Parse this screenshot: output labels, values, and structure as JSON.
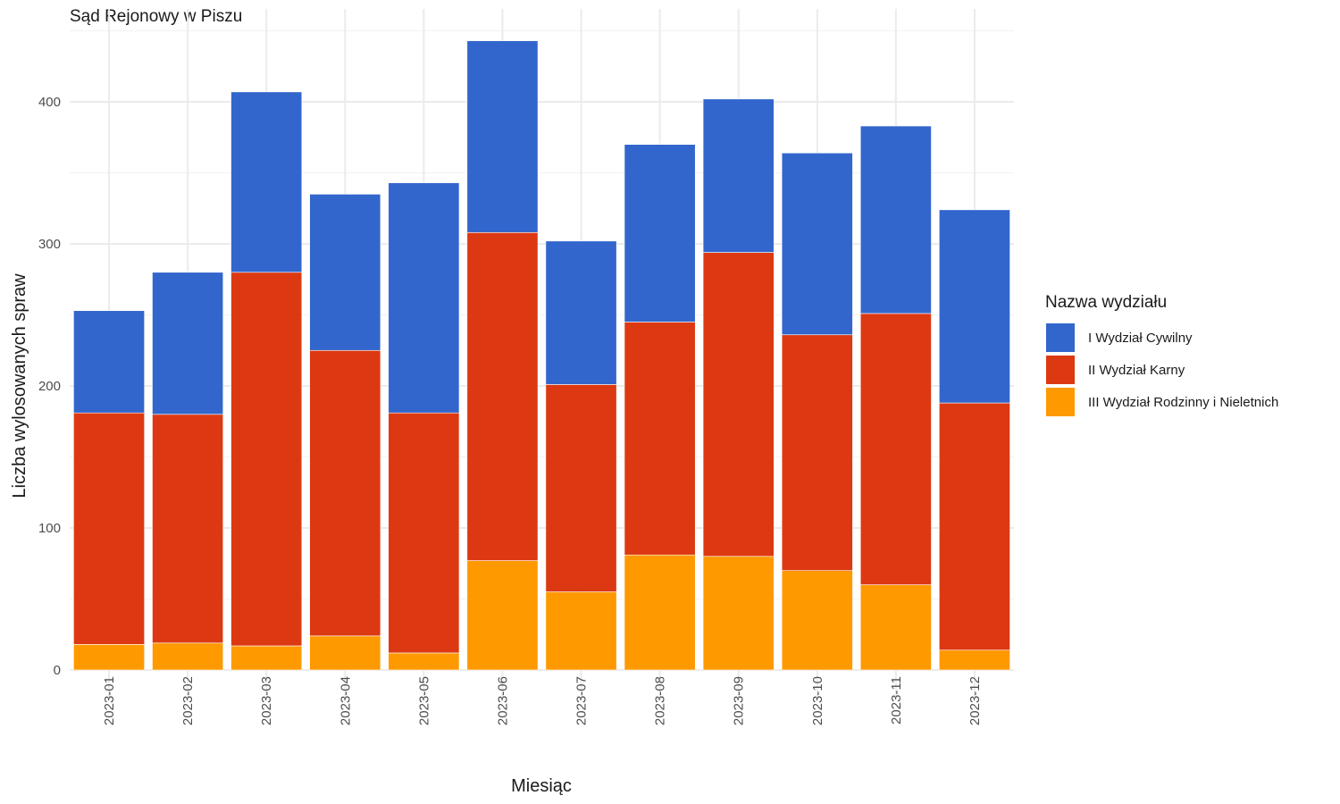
{
  "chart_data": {
    "type": "bar",
    "stacked": true,
    "title": "Sąd Rejonowy w Piszu",
    "xlabel": "Miesiąc",
    "ylabel": "Liczba wylosowanych spraw",
    "ylim": [
      0,
      450
    ],
    "yticks": [
      0,
      100,
      200,
      300,
      400
    ],
    "grid": true,
    "categories": [
      "2023-01",
      "2023-02",
      "2023-03",
      "2023-04",
      "2023-05",
      "2023-06",
      "2023-07",
      "2023-08",
      "2023-09",
      "2023-10",
      "2023-11",
      "2023-12"
    ],
    "legend_title": "Nazwa wydziału",
    "legend_position": "right",
    "series": [
      {
        "name": "III Wydział Rodzinny i Nieletnich",
        "color": "#ff9900",
        "values": [
          18,
          19,
          17,
          24,
          12,
          77,
          55,
          81,
          80,
          70,
          60,
          14
        ]
      },
      {
        "name": "II Wydział Karny",
        "color": "#dc3912",
        "values": [
          163,
          161,
          263,
          201,
          169,
          231,
          146,
          164,
          214,
          166,
          191,
          174
        ]
      },
      {
        "name": "I Wydział Cywilny",
        "color": "#3366cc",
        "values": [
          72,
          100,
          127,
          110,
          162,
          135,
          101,
          125,
          108,
          128,
          132,
          136
        ]
      }
    ],
    "legend_order": [
      "I Wydział Cywilny",
      "II Wydział Karny",
      "III Wydział Rodzinny i Nieletnich"
    ]
  }
}
